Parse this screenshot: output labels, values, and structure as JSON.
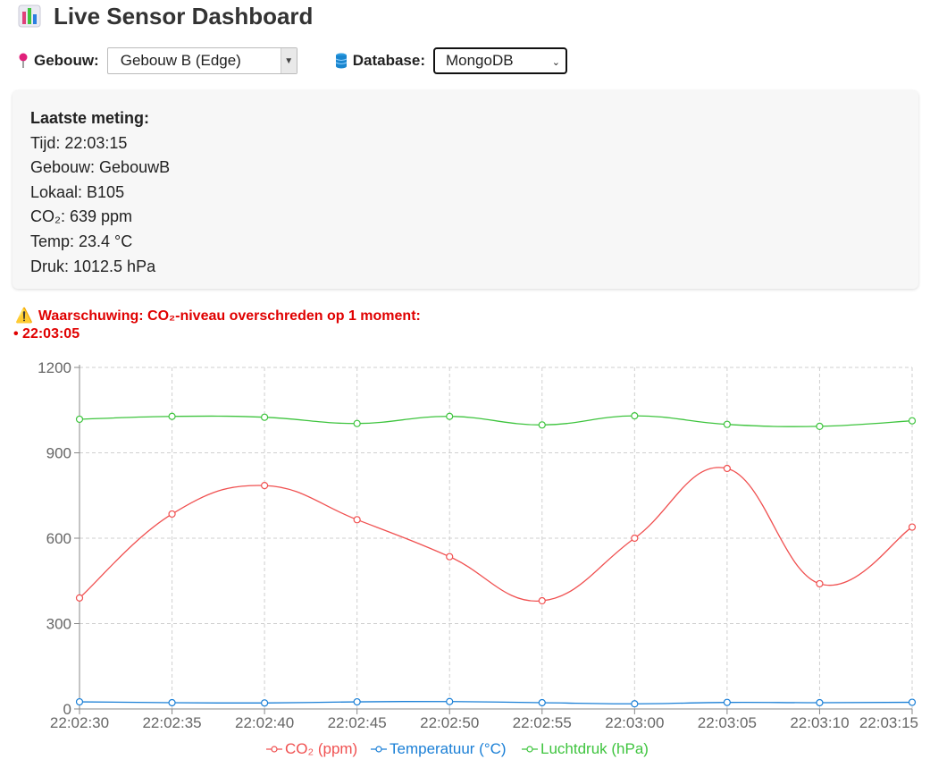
{
  "header": {
    "title": "Live Sensor Dashboard",
    "icon": "bar-chart-icon"
  },
  "controls": {
    "gebouw_label": "Gebouw:",
    "gebouw_selected": "Gebouw B (Edge)",
    "database_label": "Database:",
    "database_selected": "MongoDB"
  },
  "latest": {
    "heading": "Laatste meting:",
    "lines": [
      "Tijd: 22:03:15",
      "Gebouw: GebouwB",
      "Lokaal: B105",
      "CO₂: 639 ppm",
      "Temp: 23.4 °C",
      "Druk: 1012.5 hPa"
    ]
  },
  "warning": {
    "text": "Waarschuwing: CO₂-niveau overschreden op 1 moment:",
    "items": [
      "• 22:03:05"
    ]
  },
  "colors": {
    "co2": "#f05050",
    "temp": "#1a7fd6",
    "pressure": "#3ec43e"
  },
  "chart_data": {
    "type": "line",
    "categories": [
      "22:02:30",
      "22:02:35",
      "22:02:40",
      "22:02:45",
      "22:02:50",
      "22:02:55",
      "22:03:00",
      "22:03:05",
      "22:03:10",
      "22:03:15"
    ],
    "yticks": [
      "0",
      "300",
      "600",
      "900",
      "1200"
    ],
    "ylim": [
      0,
      1200
    ],
    "grid": true,
    "legend_position": "bottom",
    "series": [
      {
        "name": "CO₂ (ppm)",
        "color": "#f05050",
        "values": [
          390,
          685,
          785,
          665,
          535,
          380,
          600,
          845,
          440,
          639
        ]
      },
      {
        "name": "Temperatuur (°C)",
        "color": "#1a7fd6",
        "values": [
          25,
          22,
          21,
          25,
          26,
          22,
          18,
          23,
          22,
          23.4
        ]
      },
      {
        "name": "Luchtdruk (hPa)",
        "color": "#3ec43e",
        "values": [
          1018,
          1028,
          1025,
          1003,
          1028,
          998,
          1030,
          1000,
          993,
          1012.5
        ]
      }
    ]
  }
}
